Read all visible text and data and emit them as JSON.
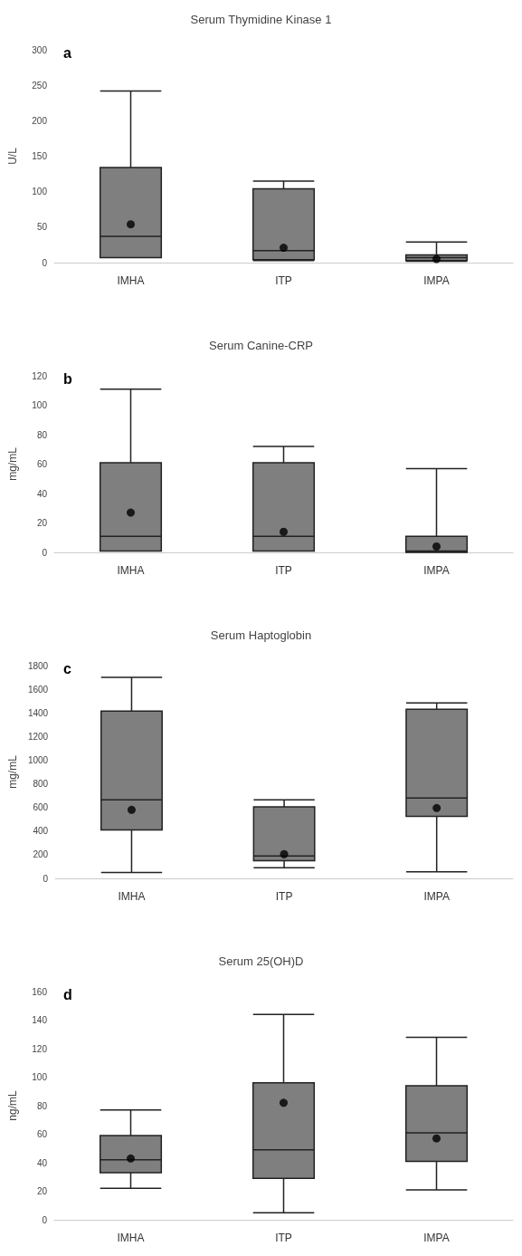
{
  "chart_data": [
    {
      "type": "box",
      "title": "Serum Thymidine Kinase 1",
      "ylabel": "U/L",
      "annotations": [
        "a"
      ],
      "categories": [
        "IMHA",
        "ITP",
        "IMPA"
      ],
      "color": "#7f7f7f",
      "marker": "circle",
      "grid": false,
      "ylim": [
        0,
        300
      ],
      "yticks": [
        0,
        50,
        100,
        150,
        200,
        250,
        300
      ],
      "boxes": [
        {
          "low": 7,
          "q1": 7,
          "median": 37,
          "q3": 134,
          "high": 242,
          "mean": 54
        },
        {
          "low": 3,
          "q1": 4,
          "median": 17,
          "q3": 104,
          "high": 115,
          "mean": 21
        },
        {
          "low": 2,
          "q1": 3,
          "median": 7,
          "q3": 11,
          "high": 29,
          "mean": 5
        }
      ]
    },
    {
      "type": "box",
      "title": "Serum Canine-CRP",
      "ylabel": "mg/mL",
      "annotations": [
        "b"
      ],
      "categories": [
        "IMHA",
        "ITP",
        "IMPA"
      ],
      "color": "#7f7f7f",
      "marker": "circle",
      "grid": false,
      "ylim": [
        0,
        120
      ],
      "yticks": [
        0,
        20,
        40,
        60,
        80,
        100,
        120
      ],
      "boxes": [
        {
          "low": 1,
          "q1": 1,
          "median": 11,
          "q3": 61,
          "high": 111,
          "mean": 27
        },
        {
          "low": 1,
          "q1": 1,
          "median": 11,
          "q3": 61,
          "high": 72,
          "mean": 14
        },
        {
          "low": 0,
          "q1": 0,
          "median": 1,
          "q3": 11,
          "high": 57,
          "mean": 4
        }
      ]
    },
    {
      "type": "box",
      "title": "Serum Haptoglobin",
      "ylabel": "mg/mL",
      "annotations": [
        "c"
      ],
      "categories": [
        "IMHA",
        "ITP",
        "IMPA"
      ],
      "color": "#7f7f7f",
      "marker": "circle",
      "grid": false,
      "ylim": [
        0,
        1800
      ],
      "yticks": [
        0,
        200,
        400,
        600,
        800,
        1000,
        1200,
        1400,
        1600,
        1800
      ],
      "boxes": [
        {
          "low": 50,
          "q1": 410,
          "median": 665,
          "q3": 1415,
          "high": 1700,
          "mean": 580
        },
        {
          "low": 90,
          "q1": 150,
          "median": 190,
          "q3": 605,
          "high": 665,
          "mean": 205
        },
        {
          "low": 55,
          "q1": 525,
          "median": 680,
          "q3": 1430,
          "high": 1485,
          "mean": 595
        }
      ]
    },
    {
      "type": "box",
      "title": "Serum 25(OH)D",
      "ylabel": "ng/mL",
      "annotations": [
        "d"
      ],
      "categories": [
        "IMHA",
        "ITP",
        "IMPA"
      ],
      "color": "#7f7f7f",
      "marker": "circle",
      "grid": false,
      "ylim": [
        0,
        160
      ],
      "yticks": [
        0,
        20,
        40,
        60,
        80,
        100,
        120,
        140,
        160
      ],
      "boxes": [
        {
          "low": 22,
          "q1": 33,
          "median": 42,
          "q3": 59,
          "high": 77,
          "mean": 43
        },
        {
          "low": 5,
          "q1": 29,
          "median": 49,
          "q3": 96,
          "high": 144,
          "mean": 82
        },
        {
          "low": 21,
          "q1": 41,
          "median": 61,
          "q3": 94,
          "high": 128,
          "mean": 57
        }
      ]
    }
  ]
}
